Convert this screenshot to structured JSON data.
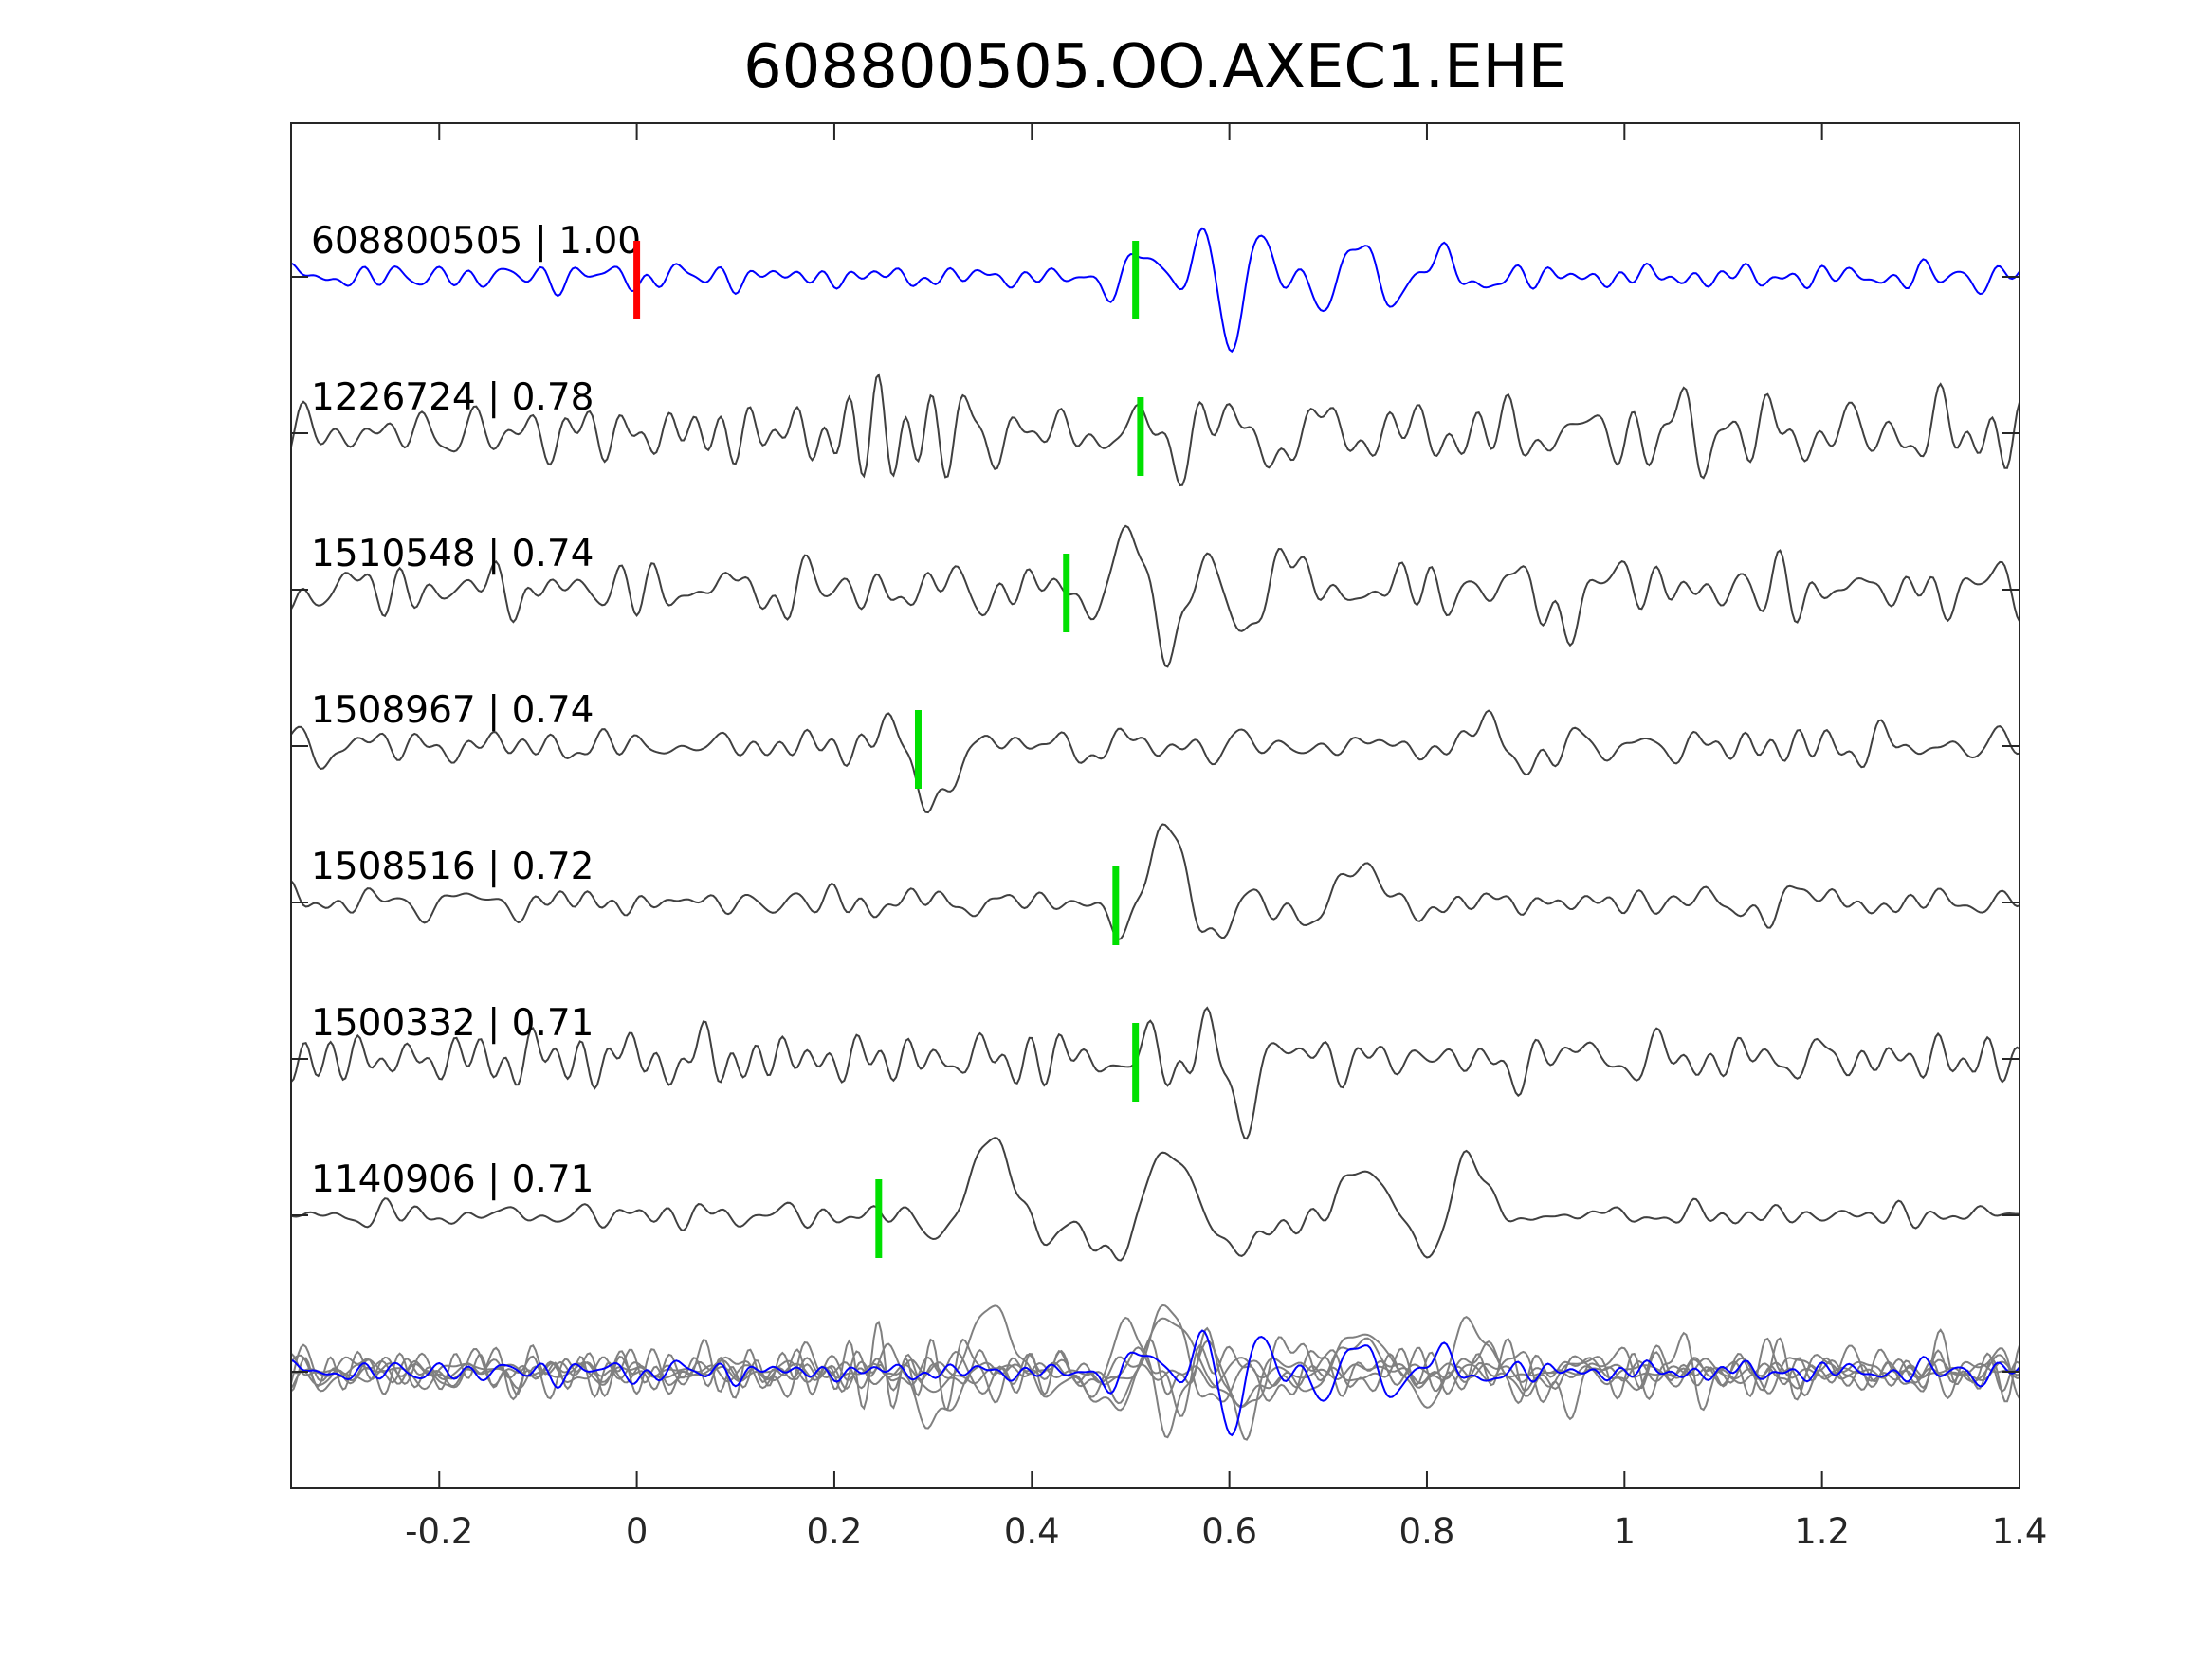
{
  "chart_data": {
    "type": "line",
    "title": "608800505.OO.AXEC1.EHE",
    "xlim": [
      -0.35,
      1.4
    ],
    "xticks": [
      -0.2,
      0,
      0.2,
      0.4,
      0.6,
      0.8,
      1,
      1.2,
      1.4
    ],
    "xtick_labels": [
      "-0.2",
      "0",
      "0.2",
      "0.4",
      "0.6",
      "0.8",
      "1",
      "1.2",
      "1.4"
    ],
    "xlabel": "",
    "ylabel": "",
    "grid": false,
    "colors": {
      "master": "#0000ff",
      "trace": "#404040",
      "stack": "#808080",
      "reference_pick": "#ff0000",
      "pick": "#00e000"
    },
    "reference_pick_time": 0,
    "traces": [
      {
        "label": "608800505 | 1.00",
        "id": "608800505",
        "cc": 1.0,
        "pick": 0.505,
        "master": true,
        "events": [
          {
            "t": 0.6,
            "a": 1.0,
            "f": 17,
            "w": 0.035
          },
          {
            "t": 0.72,
            "a": 0.45,
            "f": 14,
            "w": 0.045
          },
          {
            "t": 0.5,
            "a": 0.45,
            "f": 11,
            "w": 0.03
          },
          {
            "t": 0.82,
            "a": 0.3,
            "f": 12,
            "w": 0.04
          }
        ],
        "noise": 0.12
      },
      {
        "label": "1226724 | 0.78",
        "id": "1226724",
        "cc": 0.78,
        "pick": 0.51,
        "events": [
          {
            "t": 0.56,
            "a": 0.8,
            "f": 20,
            "w": 0.03
          },
          {
            "t": 0.66,
            "a": 0.35,
            "f": 12,
            "w": 0.04
          }
        ],
        "noise": 0.28
      },
      {
        "label": "1510548 | 0.74",
        "id": "1510548",
        "cc": 0.74,
        "pick": 0.435,
        "events": [
          {
            "t": 0.52,
            "a": 0.9,
            "f": 11,
            "w": 0.05
          },
          {
            "t": 0.64,
            "a": 0.6,
            "f": 10,
            "w": 0.04
          },
          {
            "t": 0.95,
            "a": 0.3,
            "f": 6,
            "w": 0.07
          }
        ],
        "noise": 0.18
      },
      {
        "label": "1508967 | 0.74",
        "id": "1508967",
        "cc": 0.74,
        "pick": 0.285,
        "events": [
          {
            "t": 0.3,
            "a": 0.9,
            "f": 8,
            "w": 0.04
          },
          {
            "t": 0.88,
            "a": 0.35,
            "f": 8,
            "w": 0.04
          }
        ],
        "noise": 0.16
      },
      {
        "label": "1508516 | 0.72",
        "id": "1508516",
        "cc": 0.72,
        "pick": 0.485,
        "events": [
          {
            "t": 0.54,
            "a": 1.0,
            "f": 9,
            "w": 0.05
          },
          {
            "t": 0.72,
            "a": 0.5,
            "f": 7,
            "w": 0.06
          },
          {
            "t": 1.15,
            "a": 0.25,
            "f": 9,
            "w": 0.08
          }
        ],
        "noise": 0.12
      },
      {
        "label": "1500332 | 0.71",
        "id": "1500332",
        "cc": 0.71,
        "pick": 0.505,
        "events": [
          {
            "t": 0.61,
            "a": 1.0,
            "f": 12,
            "w": 0.035
          },
          {
            "t": 0.9,
            "a": 0.3,
            "f": 10,
            "w": 0.05
          }
        ],
        "noise": 0.2
      },
      {
        "label": "1140906 | 0.71",
        "id": "1140906",
        "cc": 0.71,
        "pick": 0.245,
        "events": [
          {
            "t": 0.36,
            "a": 1.0,
            "f": 7,
            "w": 0.05
          },
          {
            "t": 0.5,
            "a": 0.8,
            "f": 7,
            "w": 0.05
          },
          {
            "t": 0.58,
            "a": 0.7,
            "f": 6,
            "w": 0.05
          },
          {
            "t": 0.73,
            "a": 0.6,
            "f": 6,
            "w": 0.06
          },
          {
            "t": 0.83,
            "a": 0.9,
            "f": 8,
            "w": 0.035
          }
        ],
        "noise": 0.1
      }
    ],
    "stack": {
      "label": "overlay of all traces"
    }
  }
}
